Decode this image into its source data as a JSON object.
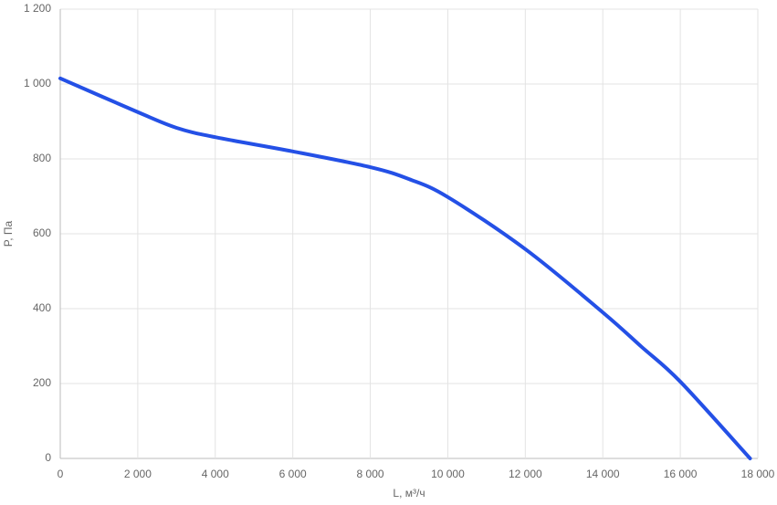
{
  "chart_data": {
    "type": "line",
    "x_label": "L, м³/ч",
    "y_label": "P, Па",
    "x": [
      0,
      2000,
      3000,
      4000,
      6000,
      8000,
      9000,
      10000,
      12000,
      14000,
      15000,
      16000,
      17800
    ],
    "series": [
      {
        "color": "#2450e6",
        "values": [
          1015,
          925,
          883,
          858,
          820,
          778,
          746,
          698,
          559,
          390,
          298,
          205,
          0
        ]
      }
    ],
    "xlim": [
      0,
      18000
    ],
    "xticks": [
      0,
      {
        "value": 2000,
        "label": "2 000"
      },
      {
        "value": 4000,
        "label": "4 000"
      },
      {
        "value": 6000,
        "label": "6 000"
      },
      {
        "value": 8000,
        "label": "8 000"
      },
      {
        "value": 10000,
        "label": "10 000"
      },
      {
        "value": 12000,
        "label": "12 000"
      },
      {
        "value": 14000,
        "label": "14 000"
      },
      {
        "value": 16000,
        "label": "16 000"
      },
      {
        "value": 18000,
        "label": "18 000"
      }
    ],
    "ylim": [
      0,
      1200
    ],
    "yticks": [
      0,
      200,
      400,
      600,
      800,
      {
        "value": 1000,
        "label": "1 000"
      },
      {
        "value": 1200,
        "label": "1 200"
      }
    ],
    "grid": true
  }
}
